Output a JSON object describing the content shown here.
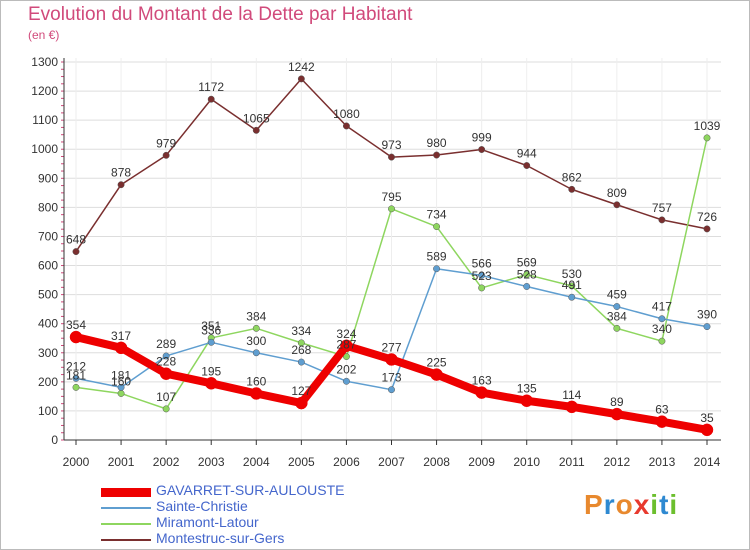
{
  "title": "Evolution du Montant de la Dette par Habitant",
  "unit": "(en €)",
  "logo": {
    "text": "Proxiti",
    "letters": [
      "P",
      "r",
      "o",
      "x",
      "i",
      "t",
      "i"
    ],
    "colors": [
      "#e8892e",
      "#2e89d1",
      "#e8892e",
      "#e83a2e",
      "#6cbf2e",
      "#2e89d1",
      "#6cbf2e"
    ]
  },
  "chart_data": {
    "type": "line",
    "x": [
      "2000",
      "2001",
      "2002",
      "2003",
      "2004",
      "2005",
      "2006",
      "2007",
      "2008",
      "2009",
      "2010",
      "2011",
      "2012",
      "2013",
      "2014"
    ],
    "ylim": [
      0,
      1300
    ],
    "yticks": [
      0,
      100,
      200,
      300,
      400,
      500,
      600,
      700,
      800,
      900,
      1000,
      1100,
      1200,
      1300
    ],
    "grid": true,
    "legend_position": "bottom-left",
    "series": [
      {
        "name": "GAVARRET-SUR-AULOUSTE",
        "color": "#ee0000",
        "width": 8,
        "values": [
          354,
          317,
          228,
          195,
          160,
          127,
          324,
          277,
          225,
          163,
          135,
          114,
          89,
          63,
          35
        ]
      },
      {
        "name": "Sainte-Christie",
        "color": "#5f9ed0",
        "width": 1.5,
        "values": [
          212,
          181,
          289,
          336,
          300,
          268,
          202,
          173,
          589,
          566,
          528,
          491,
          459,
          417,
          390
        ]
      },
      {
        "name": "Miramont-Latour",
        "color": "#8ed65f",
        "width": 1.5,
        "values": [
          181,
          160,
          107,
          351,
          384,
          334,
          287,
          795,
          734,
          523,
          569,
          530,
          384,
          340,
          1039
        ]
      },
      {
        "name": "Montestruc-sur-Gers",
        "color": "#7a2f2f",
        "width": 1.5,
        "values": [
          648,
          878,
          979,
          1172,
          1065,
          1242,
          1080,
          973,
          980,
          999,
          944,
          862,
          809,
          757,
          726
        ]
      }
    ]
  }
}
